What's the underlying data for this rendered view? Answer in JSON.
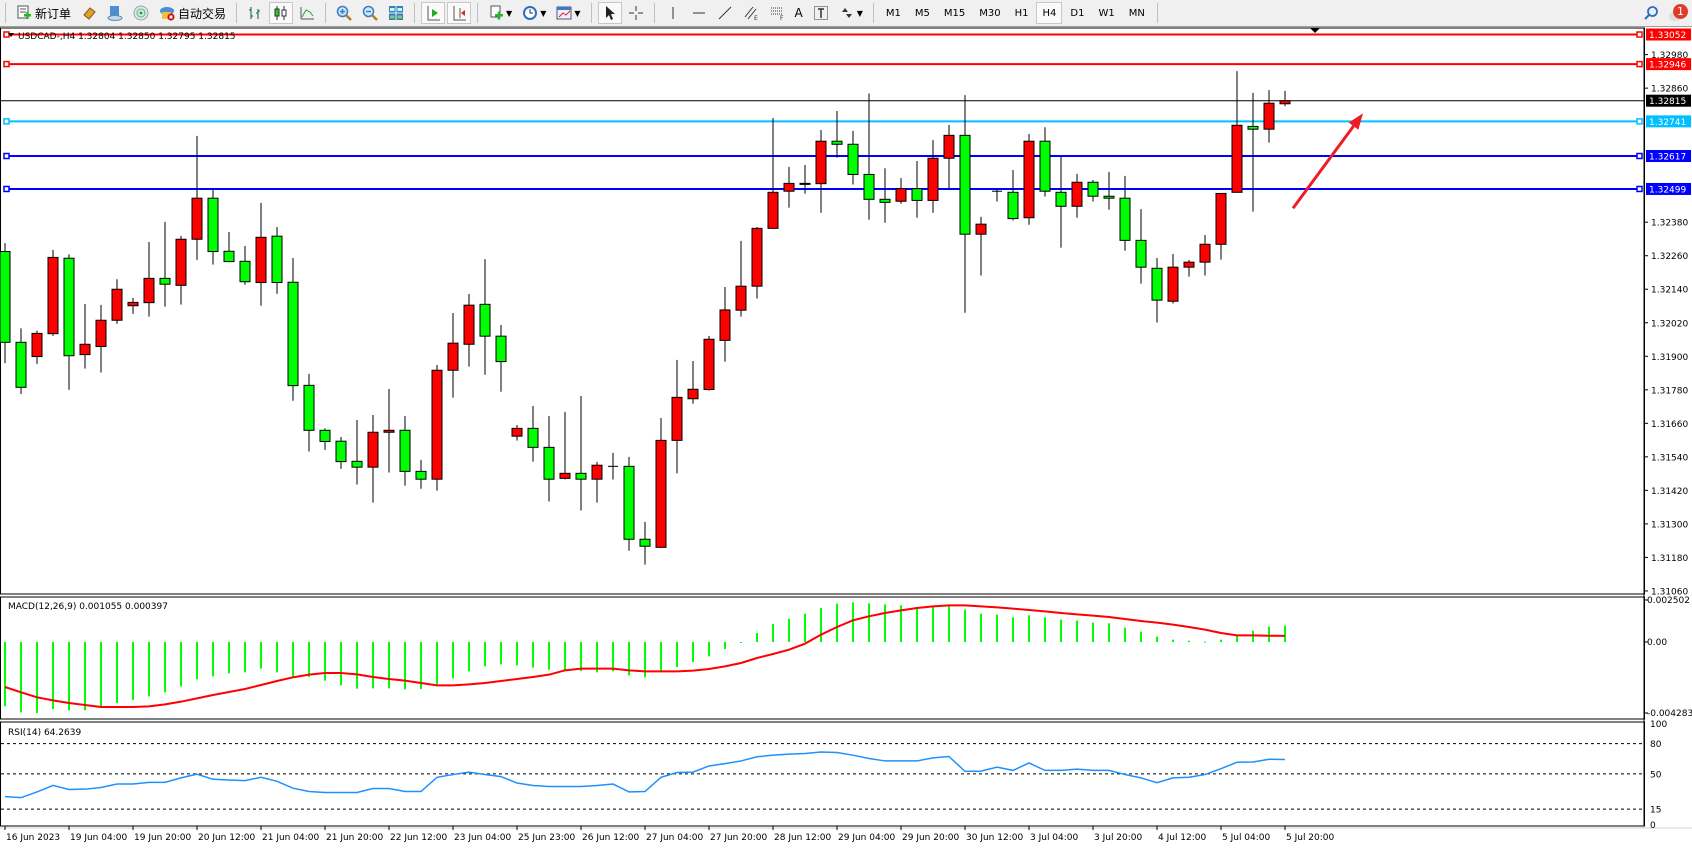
{
  "toolbar": {
    "new_order": {
      "label": "新订单",
      "icon": "new-order-icon"
    },
    "history_icon": "history-icon",
    "account_icon": "account-icon",
    "signals_icon": "signals-icon",
    "auto_trading": {
      "label": "自动交易",
      "icon": "auto-trading-icon"
    },
    "chart_types": [
      "bar-chart-icon",
      "candlestick-icon",
      "line-chart-icon"
    ],
    "zoom": [
      "zoom-in-icon",
      "zoom-out-icon"
    ],
    "tile_icon": "tile-windows-icon",
    "scroll_icons": [
      "autoscroll-icon",
      "chart-shift-icon"
    ],
    "indicators_icon": "indicators-icon",
    "periods_icon": "periods-icon",
    "templates_icon": "templates-icon",
    "draw_tools": [
      "cursor-icon",
      "crosshair-icon",
      "vertical-line-icon",
      "horizontal-line-icon",
      "trendline-icon",
      "equidistant-channel-icon",
      "fibonacci-icon",
      "text-icon",
      "text-label-icon",
      "arrows-icon"
    ],
    "text_tool_label": "A",
    "timeframes": [
      "M1",
      "M5",
      "M15",
      "M30",
      "H1",
      "H4",
      "D1",
      "W1",
      "MN"
    ],
    "active_timeframe": "H4",
    "search_icon": "search-icon",
    "notifications_count": "1"
  },
  "chart": {
    "header": "USDCAD-,H4  1.32804 1.32850 1.32795 1.32815",
    "colors": {
      "bull": "#ff0000",
      "bear": "#00ff00",
      "outline": "#000000",
      "macd_hist": "#00ff00",
      "macd_signal": "#ff0000",
      "rsi": "#1e90ff"
    },
    "price_axis_labels": [
      "1.32980",
      "1.32860",
      "1.32380",
      "1.32260",
      "1.32140",
      "1.32020",
      "1.31900",
      "1.31780",
      "1.31660",
      "1.31540",
      "1.31420",
      "1.31300",
      "1.31180",
      "1.31060"
    ],
    "horizontal_lines": [
      {
        "price": "1.33052",
        "color": "#ff0000"
      },
      {
        "price": "1.32946",
        "color": "#ff0000"
      },
      {
        "price": "1.32741",
        "color": "#00bfff"
      },
      {
        "price": "1.32617",
        "color": "#0000ff"
      },
      {
        "price": "1.32499",
        "color": "#0000ff"
      }
    ],
    "bid_line": {
      "price": "1.32815",
      "color": "#000000"
    },
    "arrow_annotation": {
      "color": "#ee1c25",
      "from_price": 1.3243,
      "to_price": 1.3277
    }
  },
  "chart_data": [
    {
      "type": "candlestick",
      "symbol": "USDCAD-",
      "timeframe": "H4",
      "ylim": [
        1.3106,
        1.33052
      ],
      "x_tick_labels": [
        "16 Jun 2023",
        "19 Jun 04:00",
        "19 Jun 20:00",
        "20 Jun 12:00",
        "21 Jun 04:00",
        "21 Jun 20:00",
        "22 Jun 12:00",
        "23 Jun 04:00",
        "25 Jun 23:00",
        "26 Jun 12:00",
        "27 Jun 04:00",
        "27 Jun 20:00",
        "28 Jun 12:00",
        "29 Jun 04:00",
        "29 Jun 20:00",
        "30 Jun 12:00",
        "3 Jul 04:00",
        "3 Jul 20:00",
        "4 Jul 12:00",
        "5 Jul 04:00",
        "5 Jul 20:00"
      ],
      "ohlc": [
        [
          1.32275,
          1.32305,
          1.31875,
          1.3195
        ],
        [
          1.3195,
          1.32,
          1.31765,
          1.31789
        ],
        [
          1.31899,
          1.31992,
          1.31873,
          1.31982
        ],
        [
          1.31981,
          1.32281,
          1.31973,
          1.32254
        ],
        [
          1.32251,
          1.32265,
          1.3178,
          1.31902
        ],
        [
          1.31906,
          1.32087,
          1.31856,
          1.31943
        ],
        [
          1.31935,
          1.32084,
          1.31842,
          1.32029
        ],
        [
          1.32029,
          1.32176,
          1.32016,
          1.3214
        ],
        [
          1.32081,
          1.32109,
          1.32052,
          1.32093
        ],
        [
          1.32092,
          1.32309,
          1.32042,
          1.32179
        ],
        [
          1.32179,
          1.32381,
          1.32078,
          1.32158
        ],
        [
          1.32154,
          1.32331,
          1.32085,
          1.32319
        ],
        [
          1.32319,
          1.32689,
          1.32245,
          1.32466
        ],
        [
          1.32466,
          1.32498,
          1.32228,
          1.32275
        ],
        [
          1.32276,
          1.32345,
          1.32239,
          1.32239
        ],
        [
          1.3224,
          1.32295,
          1.32156,
          1.32167
        ],
        [
          1.32164,
          1.32449,
          1.32081,
          1.32326
        ],
        [
          1.3233,
          1.32363,
          1.32124,
          1.32164
        ],
        [
          1.32165,
          1.32252,
          1.31741,
          1.31795
        ],
        [
          1.31796,
          1.31837,
          1.31559,
          1.31635
        ],
        [
          1.31635,
          1.31642,
          1.31565,
          1.31595
        ],
        [
          1.31596,
          1.31611,
          1.31497,
          1.31523
        ],
        [
          1.31524,
          1.31672,
          1.31441,
          1.31503
        ],
        [
          1.31503,
          1.3169,
          1.31376,
          1.31628
        ],
        [
          1.31628,
          1.31783,
          1.31484,
          1.31635
        ],
        [
          1.31635,
          1.31686,
          1.31437,
          1.31488
        ],
        [
          1.31488,
          1.31529,
          1.31426,
          1.3146
        ],
        [
          1.3146,
          1.31869,
          1.31419,
          1.3185
        ],
        [
          1.3185,
          1.32055,
          1.31752,
          1.31947
        ],
        [
          1.31943,
          1.32123,
          1.31863,
          1.32083
        ],
        [
          1.32086,
          1.32248,
          1.31834,
          1.31972
        ],
        [
          1.31972,
          1.32012,
          1.31773,
          1.31881
        ],
        [
          1.31614,
          1.31654,
          1.31598,
          1.31642
        ],
        [
          1.31642,
          1.31722,
          1.31523,
          1.31574
        ],
        [
          1.31574,
          1.31686,
          1.3138,
          1.3146
        ],
        [
          1.31463,
          1.31701,
          1.31459,
          1.31481
        ],
        [
          1.31481,
          1.31758,
          1.31348,
          1.3146
        ],
        [
          1.3146,
          1.31522,
          1.31376,
          1.3151
        ],
        [
          1.31506,
          1.31554,
          1.31459,
          1.31506
        ],
        [
          1.31506,
          1.3154,
          1.31204,
          1.31245
        ],
        [
          1.31245,
          1.31307,
          1.31154,
          1.3122
        ],
        [
          1.31216,
          1.31679,
          1.31216,
          1.31599
        ],
        [
          1.31599,
          1.31887,
          1.31481,
          1.31753
        ],
        [
          1.31748,
          1.31883,
          1.3173,
          1.31782
        ],
        [
          1.31781,
          1.31973,
          1.31777,
          1.31961
        ],
        [
          1.31957,
          1.32148,
          1.31881,
          1.32066
        ],
        [
          1.32065,
          1.32313,
          1.32042,
          1.32151
        ],
        [
          1.32151,
          1.32363,
          1.32107,
          1.32358
        ],
        [
          1.32358,
          1.32753,
          1.32358,
          1.32487
        ],
        [
          1.32491,
          1.32578,
          1.32432,
          1.32519
        ],
        [
          1.32519,
          1.32585,
          1.32482,
          1.32518
        ],
        [
          1.32518,
          1.3271,
          1.32414,
          1.3267
        ],
        [
          1.3267,
          1.32778,
          1.32611,
          1.32659
        ],
        [
          1.32659,
          1.32707,
          1.32515,
          1.32551
        ],
        [
          1.32551,
          1.32841,
          1.32389,
          1.32462
        ],
        [
          1.32462,
          1.32573,
          1.32378,
          1.32451
        ],
        [
          1.32455,
          1.32538,
          1.32446,
          1.325
        ],
        [
          1.325,
          1.32599,
          1.32396,
          1.32458
        ],
        [
          1.32458,
          1.32674,
          1.32414,
          1.32609
        ],
        [
          1.32609,
          1.32728,
          1.32501,
          1.32691
        ],
        [
          1.32691,
          1.32835,
          1.32056,
          1.32337
        ],
        [
          1.32337,
          1.32399,
          1.32189,
          1.32373
        ],
        [
          1.32491,
          1.32498,
          1.32454,
          1.32491
        ],
        [
          1.32487,
          1.32567,
          1.32386,
          1.32393
        ],
        [
          1.32396,
          1.32696,
          1.32371,
          1.3267
        ],
        [
          1.3267,
          1.3272,
          1.32472,
          1.32491
        ],
        [
          1.32487,
          1.32615,
          1.32289,
          1.32437
        ],
        [
          1.32437,
          1.32553,
          1.32396,
          1.32523
        ],
        [
          1.32523,
          1.32531,
          1.32454,
          1.32473
        ],
        [
          1.32473,
          1.3256,
          1.32425,
          1.32466
        ],
        [
          1.32466,
          1.32546,
          1.32278,
          1.32315
        ],
        [
          1.32315,
          1.32427,
          1.3216,
          1.32219
        ],
        [
          1.32215,
          1.32252,
          1.32021,
          1.32101
        ],
        [
          1.32097,
          1.32266,
          1.32089,
          1.32219
        ],
        [
          1.32219,
          1.32245,
          1.32185,
          1.32237
        ],
        [
          1.32237,
          1.32334,
          1.32189,
          1.32301
        ],
        [
          1.32301,
          1.32483,
          1.32246,
          1.32483
        ],
        [
          1.32487,
          1.32921,
          1.32487,
          1.32727
        ],
        [
          1.32723,
          1.32843,
          1.32418,
          1.32713
        ],
        [
          1.32713,
          1.32853,
          1.32665,
          1.32806
        ],
        [
          1.32804,
          1.3285,
          1.32795,
          1.32815
        ]
      ]
    },
    {
      "type": "bar",
      "title": "MACD(12,26,9) 0.001055 0.000397",
      "y_tick_labels": [
        "0.002502",
        "0.00",
        "-0.004283"
      ],
      "ylim": [
        -0.004283,
        0.002502
      ],
      "histogram": [
        -0.00413,
        -0.004515,
        -0.004558,
        -0.004301,
        -0.004387,
        -0.004387,
        -0.00413,
        -0.003916,
        -0.003724,
        -0.003488,
        -0.003231,
        -0.002846,
        -0.002397,
        -0.002204,
        -0.002012,
        -0.001947,
        -0.001712,
        -0.001947,
        -0.002247,
        -0.002247,
        -0.002482,
        -0.002782,
        -0.002996,
        -0.002975,
        -0.002975,
        -0.003039,
        -0.003017,
        -0.002739,
        -0.002333,
        -0.001883,
        -0.001562,
        -0.001434,
        -0.001498,
        -0.001648,
        -0.001776,
        -0.001883,
        -0.001862,
        -0.001947,
        -0.001883,
        -0.00214,
        -0.002268,
        -0.001862,
        -0.001605,
        -0.001284,
        -0.00092,
        -0.000449,
        -6.4e-05,
        0.000578,
        0.001156,
        0.001498,
        0.001819,
        0.002183,
        0.002461,
        0.002547,
        0.002482,
        0.002418,
        0.002354,
        0.002161,
        0.002333,
        0.00229,
        0.002076,
        0.001819,
        0.001755,
        0.001584,
        0.001712,
        0.001584,
        0.001434,
        0.00137,
        0.001241,
        0.001198,
        0.00092,
        0.000663,
        0.000342,
        0.00015,
        8.6e-05,
        2.1e-05,
        0.00015,
        0.000428,
        0.000728,
        0.000984,
        0.001055
      ],
      "signal": [
        -0.002889,
        -0.003231,
        -0.003552,
        -0.003745,
        -0.003916,
        -0.004045,
        -0.004173,
        -0.004173,
        -0.004173,
        -0.00413,
        -0.004002,
        -0.003831,
        -0.003617,
        -0.003402,
        -0.00321,
        -0.003017,
        -0.002761,
        -0.002504,
        -0.002268,
        -0.002097,
        -0.00199,
        -0.00199,
        -0.002076,
        -0.002247,
        -0.002375,
        -0.002482,
        -0.002632,
        -0.002782,
        -0.002782,
        -0.002718,
        -0.002632,
        -0.002504,
        -0.002375,
        -0.002247,
        -0.002097,
        -0.001819,
        -0.001712,
        -0.001712,
        -0.001712,
        -0.001819,
        -0.001883,
        -0.001883,
        -0.001883,
        -0.00184,
        -0.001733,
        -0.001562,
        -0.001348,
        -0.001027,
        -0.00077,
        -0.000492,
        -0.000107,
        0.000471,
        0.000963,
        0.001391,
        0.001648,
        0.001862,
        0.002033,
        0.002183,
        0.00229,
        0.002354,
        0.002354,
        0.00229,
        0.002226,
        0.00214,
        0.002054,
        0.001969,
        0.001862,
        0.001776,
        0.001691,
        0.001605,
        0.001477,
        0.001348,
        0.001241,
        0.001113,
        0.000963,
        0.000792,
        0.000578,
        0.000428,
        0.000428,
        0.0004,
        0.000397
      ]
    },
    {
      "type": "line",
      "title": "RSI(14) 64.2639",
      "y_tick_labels": [
        "100",
        "80",
        "50",
        "15",
        "0"
      ],
      "levels": [
        80,
        50,
        15
      ],
      "ylim": [
        0,
        100
      ],
      "values": [
        27.4,
        26.4,
        32.1,
        38.5,
        34.5,
        34.8,
        36.5,
        39.9,
        39.9,
        41.6,
        41.6,
        46.0,
        49.7,
        44.6,
        43.9,
        43.3,
        46.6,
        42.6,
        35.8,
        32.5,
        31.5,
        31.5,
        31.5,
        35.5,
        35.5,
        32.5,
        32.5,
        46.6,
        49.3,
        51.7,
        49.3,
        47.3,
        40.9,
        38.5,
        37.5,
        37.5,
        37.5,
        38.5,
        39.9,
        32.1,
        32.5,
        46.6,
        51.3,
        51.7,
        57.8,
        60.1,
        62.8,
        66.9,
        68.5,
        69.5,
        70.2,
        71.6,
        71.2,
        68.5,
        65.2,
        62.8,
        62.8,
        62.8,
        65.8,
        67.2,
        52.4,
        52.7,
        56.7,
        53.4,
        60.8,
        53.4,
        53.4,
        54.7,
        53.4,
        53.4,
        49.3,
        46.0,
        41.2,
        46.0,
        46.6,
        49.3,
        55.1,
        61.5,
        61.8,
        64.5,
        64.2639
      ]
    }
  ]
}
